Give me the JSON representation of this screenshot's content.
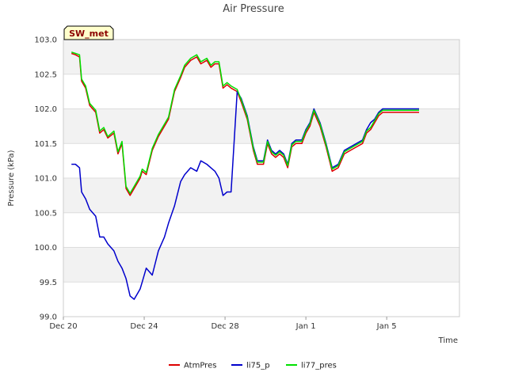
{
  "chart_data": {
    "type": "line",
    "title": "Air Pressure",
    "xlabel": "Time",
    "ylabel": "Pressure (kPa)",
    "badge": "SW_met",
    "ylim": [
      99.0,
      103.0
    ],
    "xlim": [
      0,
      19.6
    ],
    "yticks": [
      "99.0",
      "99.5",
      "100.0",
      "100.5",
      "101.0",
      "101.5",
      "102.0",
      "102.5",
      "103.0"
    ],
    "xticks": [
      {
        "label": "Dec 20",
        "x": 0
      },
      {
        "label": "Dec 24",
        "x": 4
      },
      {
        "label": "Dec 28",
        "x": 8
      },
      {
        "label": "Jan 1",
        "x": 12
      },
      {
        "label": "Jan 5",
        "x": 16
      }
    ],
    "grid": true,
    "legend_position": "bottom-center",
    "series": [
      {
        "name": "AtmPres",
        "color": "#dd0000",
        "x": [
          0.4,
          0.6,
          0.8,
          0.9,
          1.1,
          1.3,
          1.6,
          1.8,
          2.0,
          2.2,
          2.5,
          2.7,
          2.9,
          3.1,
          3.3,
          3.5,
          3.7,
          3.8,
          3.9,
          4.1,
          4.4,
          4.7,
          5.0,
          5.2,
          5.5,
          5.8,
          6.0,
          6.3,
          6.6,
          6.8,
          7.1,
          7.3,
          7.5,
          7.7,
          7.9,
          8.1,
          8.3,
          8.6,
          8.8,
          9.1,
          9.4,
          9.6,
          9.9,
          10.1,
          10.3,
          10.5,
          10.7,
          10.9,
          11.1,
          11.3,
          11.5,
          11.8,
          12.0,
          12.2,
          12.4,
          12.7,
          13.0,
          13.3,
          13.6,
          13.9,
          14.2,
          14.5,
          14.8,
          15.0,
          15.2,
          15.4,
          15.6,
          15.8,
          16.0,
          16.2,
          16.5,
          16.8,
          17.1,
          17.4,
          17.6
        ],
        "values": [
          102.8,
          102.78,
          102.75,
          102.4,
          102.3,
          102.05,
          101.95,
          101.65,
          101.7,
          101.58,
          101.65,
          101.35,
          101.5,
          100.85,
          100.75,
          100.85,
          100.95,
          101.0,
          101.1,
          101.05,
          101.4,
          101.6,
          101.75,
          101.85,
          102.25,
          102.45,
          102.6,
          102.7,
          102.75,
          102.65,
          102.7,
          102.6,
          102.65,
          102.65,
          102.3,
          102.35,
          102.3,
          102.25,
          102.1,
          101.85,
          101.4,
          101.2,
          101.2,
          101.5,
          101.35,
          101.3,
          101.35,
          101.3,
          101.15,
          101.45,
          101.5,
          101.5,
          101.65,
          101.75,
          101.95,
          101.75,
          101.45,
          101.1,
          101.15,
          101.35,
          101.4,
          101.45,
          101.5,
          101.65,
          101.7,
          101.8,
          101.9,
          101.95,
          101.95,
          101.95,
          101.95,
          101.95,
          101.95,
          101.95,
          101.95
        ]
      },
      {
        "name": "li75_p",
        "color": "#0000cc",
        "x": [
          0.4,
          0.6,
          0.8,
          0.9,
          1.1,
          1.3,
          1.6,
          1.8,
          2.0,
          2.2,
          2.5,
          2.7,
          2.9,
          3.1,
          3.3,
          3.5,
          3.7,
          3.8,
          3.9,
          4.1,
          4.4,
          4.7,
          5.0,
          5.2,
          5.5,
          5.8,
          6.0,
          6.3,
          6.6,
          6.8,
          7.1,
          7.3,
          7.5,
          7.7,
          7.9,
          8.1,
          8.3,
          8.6,
          8.8,
          9.1,
          9.4,
          9.6,
          9.9,
          10.1,
          10.3,
          10.5,
          10.7,
          10.9,
          11.1,
          11.3,
          11.5,
          11.8,
          12.0,
          12.2,
          12.4,
          12.7,
          13.0,
          13.3,
          13.6,
          13.9,
          14.2,
          14.5,
          14.8,
          15.0,
          15.2,
          15.4,
          15.6,
          15.8,
          16.0,
          16.2,
          16.5,
          16.8,
          17.1,
          17.4,
          17.6
        ],
        "values": [
          101.2,
          101.2,
          101.15,
          100.8,
          100.7,
          100.55,
          100.45,
          100.15,
          100.15,
          100.05,
          99.95,
          99.8,
          99.7,
          99.55,
          99.3,
          99.25,
          99.35,
          99.4,
          99.5,
          99.7,
          99.6,
          99.95,
          100.15,
          100.35,
          100.6,
          100.95,
          101.05,
          101.15,
          101.1,
          101.25,
          101.2,
          101.15,
          101.1,
          101.0,
          100.75,
          100.8,
          100.8,
          102.25,
          102.15,
          101.9,
          101.45,
          101.25,
          101.25,
          101.55,
          101.4,
          101.35,
          101.4,
          101.35,
          101.2,
          101.5,
          101.55,
          101.55,
          101.7,
          101.8,
          102.0,
          101.8,
          101.5,
          101.15,
          101.2,
          101.4,
          101.45,
          101.5,
          101.55,
          101.7,
          101.8,
          101.85,
          101.95,
          102.0,
          102.0,
          102.0,
          102.0,
          102.0,
          102.0,
          102.0,
          102.0
        ]
      },
      {
        "name": "li77_pres",
        "color": "#00e000",
        "x": [
          0.4,
          0.6,
          0.8,
          0.9,
          1.1,
          1.3,
          1.6,
          1.8,
          2.0,
          2.2,
          2.5,
          2.7,
          2.9,
          3.1,
          3.3,
          3.5,
          3.7,
          3.8,
          3.9,
          4.1,
          4.4,
          4.7,
          5.0,
          5.2,
          5.5,
          5.8,
          6.0,
          6.3,
          6.6,
          6.8,
          7.1,
          7.3,
          7.5,
          7.7,
          7.9,
          8.1,
          8.3,
          8.6,
          8.8,
          9.1,
          9.4,
          9.6,
          9.9,
          10.1,
          10.3,
          10.5,
          10.7,
          10.9,
          11.1,
          11.3,
          11.5,
          11.8,
          12.0,
          12.2,
          12.4,
          12.7,
          13.0,
          13.3,
          13.6,
          13.9,
          14.2,
          14.5,
          14.8,
          15.0,
          15.2,
          15.4,
          15.6,
          15.8,
          16.0,
          16.2,
          16.5,
          16.8,
          17.1,
          17.4,
          17.6
        ],
        "values": [
          102.82,
          102.8,
          102.78,
          102.43,
          102.33,
          102.08,
          101.98,
          101.68,
          101.73,
          101.6,
          101.68,
          101.38,
          101.53,
          100.88,
          100.78,
          100.88,
          100.98,
          101.03,
          101.13,
          101.08,
          101.43,
          101.63,
          101.78,
          101.88,
          102.28,
          102.48,
          102.63,
          102.73,
          102.78,
          102.68,
          102.73,
          102.63,
          102.68,
          102.68,
          102.33,
          102.38,
          102.33,
          102.28,
          102.13,
          101.88,
          101.43,
          101.23,
          101.23,
          101.53,
          101.38,
          101.33,
          101.38,
          101.33,
          101.18,
          101.48,
          101.53,
          101.53,
          101.68,
          101.78,
          101.98,
          101.78,
          101.48,
          101.13,
          101.18,
          101.38,
          101.43,
          101.48,
          101.53,
          101.68,
          101.73,
          101.83,
          101.93,
          101.98,
          101.98,
          101.98,
          101.98,
          101.98,
          101.98,
          101.98,
          101.98
        ]
      }
    ]
  }
}
